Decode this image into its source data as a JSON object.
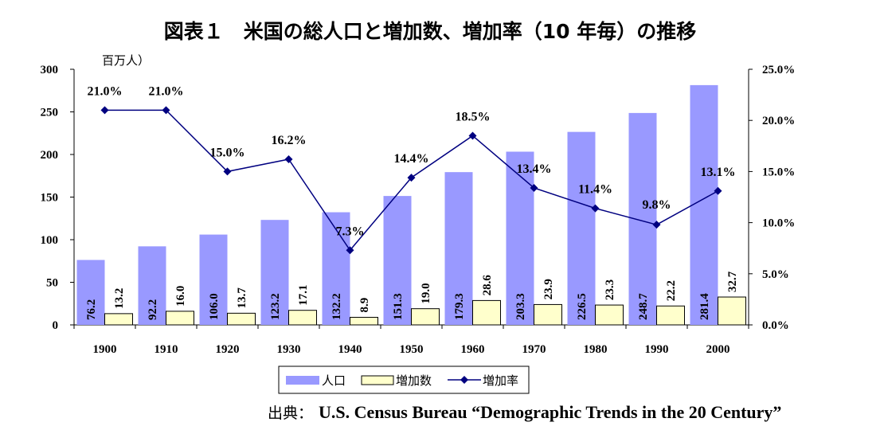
{
  "chart_data": {
    "type": "bar",
    "title": "図表１　米国の総人口と増加数、増加率（10 年毎）の推移",
    "ylabel_left": "百万人）",
    "categories": [
      "1900",
      "1910",
      "1920",
      "1930",
      "1940",
      "1950",
      "1960",
      "1970",
      "1980",
      "1990",
      "2000"
    ],
    "y_left": {
      "range": [
        0,
        300
      ],
      "ticks": [
        "0",
        "50",
        "100",
        "150",
        "200",
        "250",
        "300"
      ]
    },
    "y_right": {
      "range": [
        0,
        25
      ],
      "ticks": [
        "0.0%",
        "5.0%",
        "10.0%",
        "15.0%",
        "20.0%",
        "25.0%"
      ]
    },
    "series": [
      {
        "name": "人口",
        "type": "bar",
        "axis": "left",
        "color": "#9999ff",
        "values": [
          76.2,
          92.2,
          106.0,
          123.2,
          132.2,
          151.3,
          179.3,
          203.3,
          226.5,
          248.7,
          281.4
        ],
        "labels": [
          "76.2",
          "92.2",
          "106.0",
          "123.2",
          "132.2",
          "151.3",
          "179.3",
          "203.3",
          "226.5",
          "248.7",
          "281.4"
        ]
      },
      {
        "name": "増加数",
        "type": "bar",
        "axis": "left",
        "color": "#ffffcc",
        "values": [
          13.2,
          16.0,
          13.7,
          17.1,
          8.9,
          19.0,
          28.6,
          23.9,
          23.3,
          22.2,
          32.7
        ],
        "labels": [
          "13.2",
          "16.0",
          "13.7",
          "17.1",
          "8.9",
          "19.0",
          "28.6",
          "23.9",
          "23.3",
          "22.2",
          "32.7"
        ]
      },
      {
        "name": "増加率",
        "type": "line",
        "axis": "right",
        "color": "#000080",
        "values": [
          21.0,
          21.0,
          15.0,
          16.2,
          7.3,
          14.4,
          18.5,
          13.4,
          11.4,
          9.8,
          13.1
        ],
        "labels": [
          "21.0%",
          "21.0%",
          "15.0%",
          "16.2%",
          "7.3%",
          "14.4%",
          "18.5%",
          "13.4%",
          "11.4%",
          "9.8%",
          "13.1%"
        ]
      }
    ],
    "legend_position": "bottom",
    "grid": false
  },
  "source": {
    "prefix": "出典：",
    "text": "U.S. Census Bureau “Demographic Trends in the 20 Century”"
  }
}
